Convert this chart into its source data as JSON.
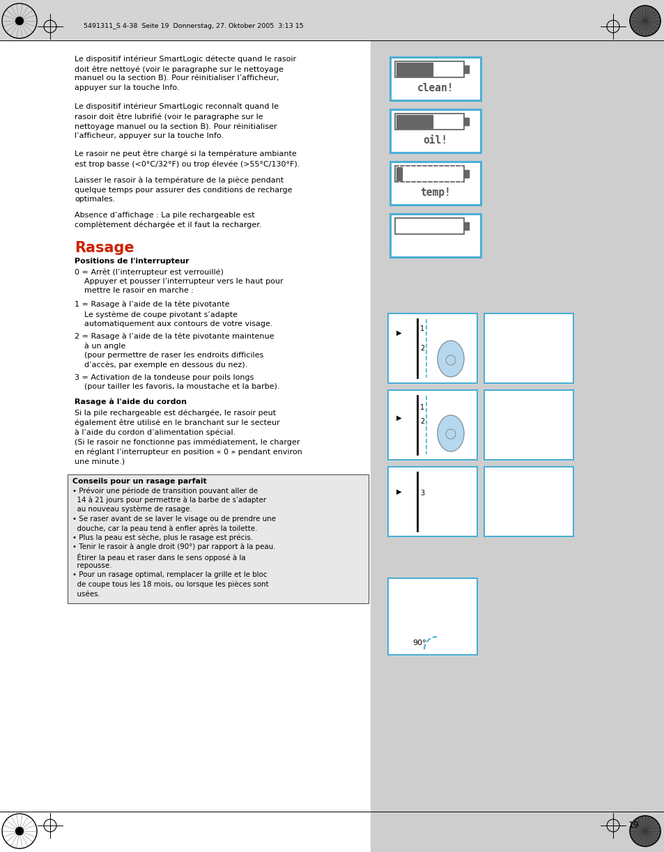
{
  "page_bg": "#d4d4d4",
  "content_bg": "#ffffff",
  "right_panel_bg": "#cecece",
  "header_text": "5491311_S 4-38  Seite 19  Donnerstag, 27. Oktober 2005  3:13 15",
  "page_number": "19",
  "blue_border": "#4aafd5",
  "title_color": "#cc2200",
  "body_font_size": 8.0,
  "p1": "Le dispositif intérieur SmartLogic détecte quand le rasoir\ndoit être nettoyé (voir le paragraphe sur le nettoyage\nmanuel ou la section B). Pour réinitialiser l’afficheur,\nappuyer sur la touche Info.",
  "p2": "Le dispositif intérieur SmartLogic reconnaît quand le\nrasoir doit être lubrifié (voir le paragraphe sur le\nnettoyage manuel ou la section B). Pour réinitialiser\nl’afficheur, appuyer sur la touche Info.",
  "p3": "Le rasoir ne peut être chargé si la température ambiante\nest trop basse (<0°C/32°F) ou trop élevée (>55°C/130°F).",
  "p4": "Laisser le rasoir à la température de la pièce pendant\nquelque temps pour assurer des conditions de recharge\noptimales.",
  "p5": "Absence d’affichage : La pile rechargeable est\ncomplètement déchargée et il faut la recharger.",
  "section_rasage": "Rasage",
  "sub1_bold": "Positions de l'interrupteur",
  "pos0": "0 = Arrêt (l’interrupteur est verrouillé)\n    Appuyer et pousser l’interrupteur vers le haut pour\n    mettre le rasoir en marche :",
  "pos1": "1 = Rasage à l’aide de la tête pivotante\n    Le système de coupe pivotant s’adapte\n    automatiquement aux contours de votre visage.",
  "pos2": "2 = Rasage à l’aide de la tête pivotante maintenue\n    à un angle\n    (pour permettre de raser les endroits difficiles\n    d’accès, par exemple en dessous du nez).",
  "pos3": "3 = Activation de la tondeuse pour poils longs\n    (pour tailler les favoris, la moustache et la barbe).",
  "sub2_bold": "Rasage à l'aide du cordon",
  "cordon": "Si la pile rechargeable est déchargée, le rasoir peut\négalement être utilisé en le branchant sur le secteur\nà l’aide du cordon d’alimentation spécial.\n(Si le rasoir ne fonctionne pas immédiatement, le charger\nen réglant l’interrupteur en position « 0 » pendant environ\nune minute.)",
  "conseil_title": "Conseils pour un rasage parfait",
  "conseil_lines": [
    "• Prévoir une période de transition pouvant aller de",
    "  14 à 21 jours pour permettre à la barbe de s’adapter",
    "  au nouveau système de rasage.",
    "• Se raser avant de se laver le visage ou de prendre une",
    "  douche, car la peau tend à enfler après la toilette.",
    "• Plus la peau est sèche, plus le rasage est précis.",
    "• Tenir le rasoir à angle droit (90°) par rapport à la peau.",
    "  Étirer la peau et raser dans le sens opposé à la",
    "  repousse.",
    "• Pour un rasage optimal, remplacer la grille et le bloc",
    "  de coupe tous les 18 mois, ou lorsque les pièces sont",
    "  usées."
  ],
  "display_items": [
    {
      "label": "clean!",
      "fill": 0.55,
      "dashed": false
    },
    {
      "label": "oil!",
      "fill": 0.55,
      "dashed": false
    },
    {
      "label": "temp!",
      "fill": 0.08,
      "dashed": true
    },
    {
      "label": "",
      "fill": -1,
      "dashed": false
    }
  ]
}
